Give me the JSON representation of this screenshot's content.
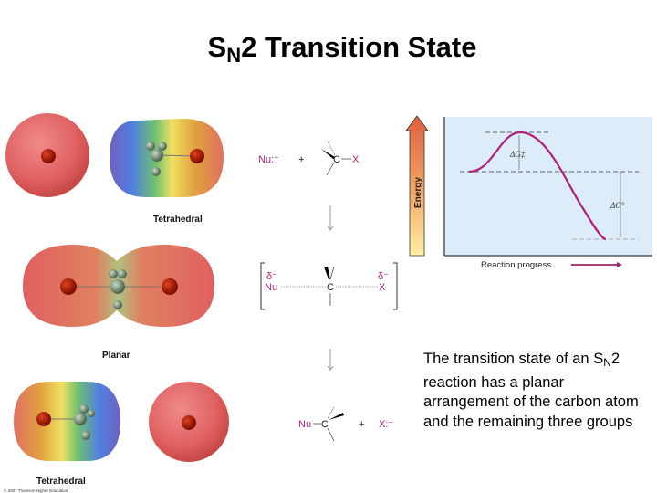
{
  "slide": {
    "title_main": "S",
    "title_sub": "N",
    "title_rest": "2 Transition State",
    "caption_a": "The transition state of an S",
    "caption_sub": "N",
    "caption_b": "2 reaction has a planar arrangement of the carbon atom and the remaining three groups"
  },
  "models": {
    "top_label": "Tetrahedral",
    "middle_label": "Planar",
    "bottom_label": "Tetrahedral",
    "copyright": "© 2007 Thomson Higher Education"
  },
  "mechanism": {
    "nucleophile": "Nu:⁻",
    "plus": "+",
    "carbon": "C",
    "leaving_group": "X",
    "delta_minus": "δ⁻",
    "nu": "Nu",
    "x_minus": "X:⁻"
  },
  "energy_diagram": {
    "y_axis_label": "Energy",
    "x_axis_label": "Reaction progress",
    "activation_label": "ΔG‡",
    "reaction_label": "ΔG°",
    "colors": {
      "curve": "#b0207a",
      "panel": "#dcecf8",
      "arrow_top": "#e06040",
      "arrow_bottom": "#fff0a0"
    }
  }
}
